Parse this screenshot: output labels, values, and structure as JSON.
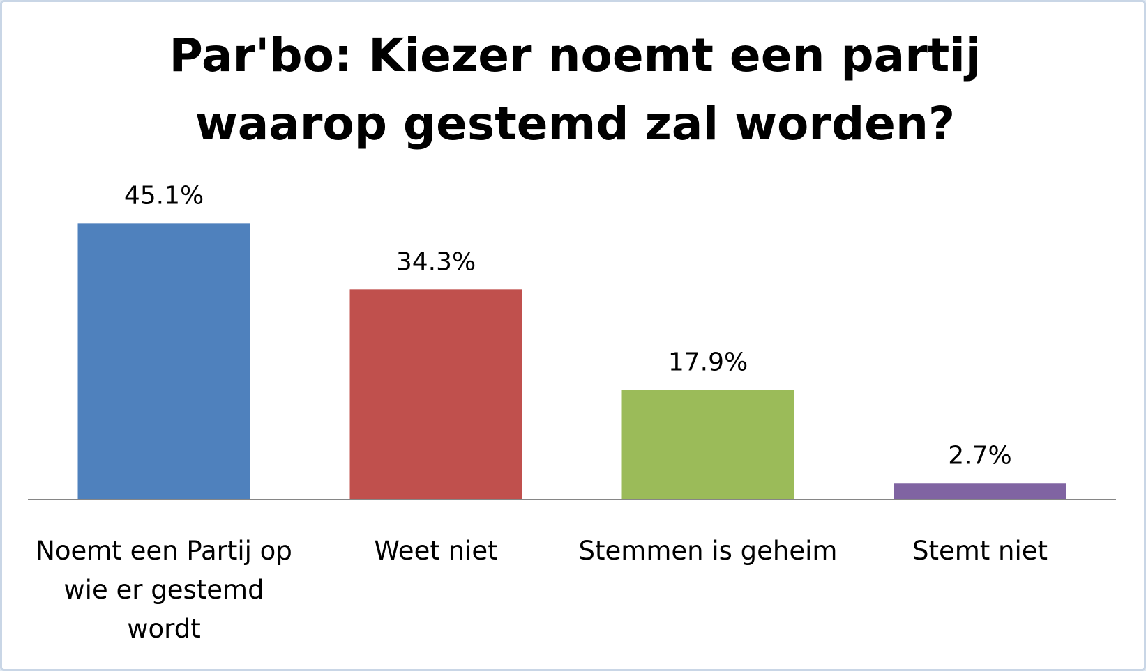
{
  "chart_data": {
    "type": "bar",
    "title": "Par'bo: Kiezer noemt een partij waarop gestemd zal worden?",
    "title_lines": [
      "Par'bo: Kiezer noemt een partij",
      "waarop gestemd zal worden?"
    ],
    "categories": [
      "Noemt een Partij op wie er gestemd wordt",
      "Weet niet",
      "Stemmen is geheim",
      "Stemt niet"
    ],
    "category_lines": [
      [
        "Noemt een Partij op",
        "wie er gestemd",
        "wordt"
      ],
      [
        "Weet niet"
      ],
      [
        "Stemmen is geheim"
      ],
      [
        "Stemt niet"
      ]
    ],
    "values": [
      45.1,
      34.3,
      17.9,
      2.7
    ],
    "data_labels": [
      "45.1%",
      "34.3%",
      "17.9%",
      "2.7%"
    ],
    "colors": [
      "#4f81bd",
      "#c0504d",
      "#9bbb59",
      "#8064a2"
    ],
    "ylim": [
      0,
      50
    ],
    "xlabel": "",
    "ylabel": "",
    "grid": false,
    "legend": "none"
  }
}
